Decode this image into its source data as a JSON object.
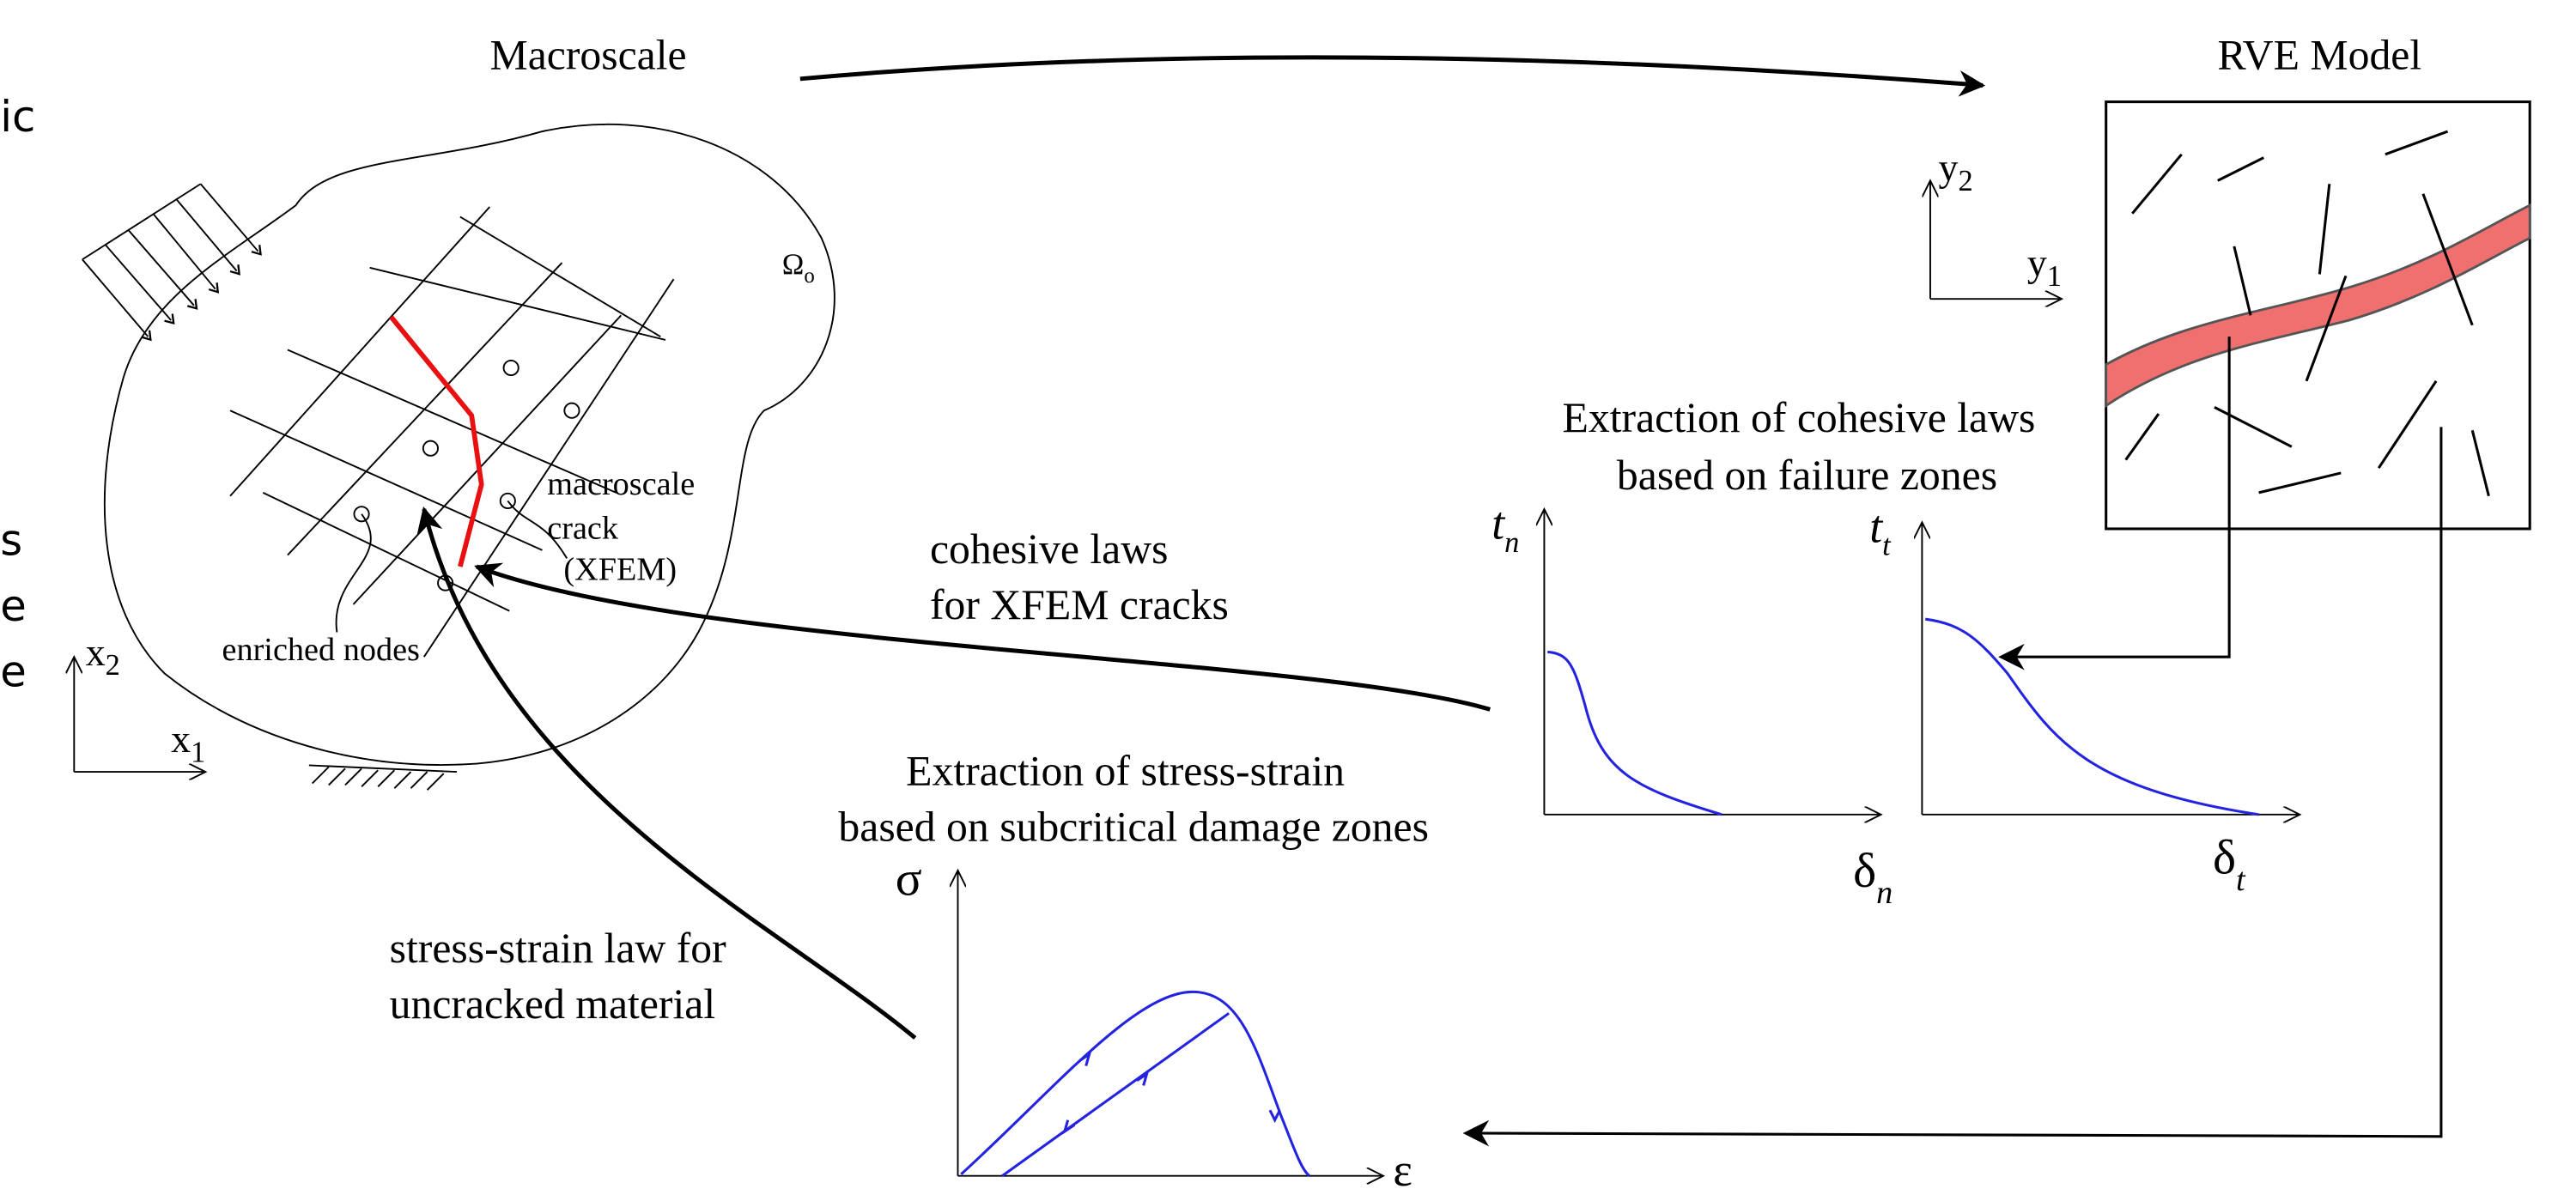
{
  "macroscale": {
    "title": "Macroscale",
    "domain": {
      "base": "Ω",
      "sub": "o"
    },
    "crack_label": [
      "macroscale",
      "crack",
      "(XFEM)"
    ],
    "nodes_label": "enriched nodes",
    "axes": {
      "x": {
        "base": "x",
        "sub": "1"
      },
      "y": {
        "base": "x",
        "sub": "2"
      }
    }
  },
  "rve": {
    "title": "RVE Model",
    "axes": {
      "x": {
        "base": "y",
        "sub": "1"
      },
      "y": {
        "base": "y",
        "sub": "2"
      }
    }
  },
  "cohesive_extraction": {
    "title": [
      "Extraction of cohesive laws",
      "based on failure zones"
    ],
    "plot_n": {
      "y": {
        "base": "t",
        "sub": "n"
      },
      "x": {
        "base": "δ",
        "sub": "n"
      }
    },
    "plot_t": {
      "y": {
        "base": "t",
        "sub": "t"
      },
      "x": {
        "base": "δ",
        "sub": "t"
      }
    }
  },
  "cohesive_arrow_label": [
    "cohesive laws",
    "for XFEM cracks"
  ],
  "stress_extraction": {
    "title": [
      "Extraction of stress-strain",
      "based on subcritical damage zones"
    ],
    "y": "σ",
    "x": "ε"
  },
  "stress_arrow_label": [
    "stress-strain law for",
    "uncracked material"
  ],
  "left_fragments": [
    "ic",
    "s",
    "e",
    "e"
  ]
}
